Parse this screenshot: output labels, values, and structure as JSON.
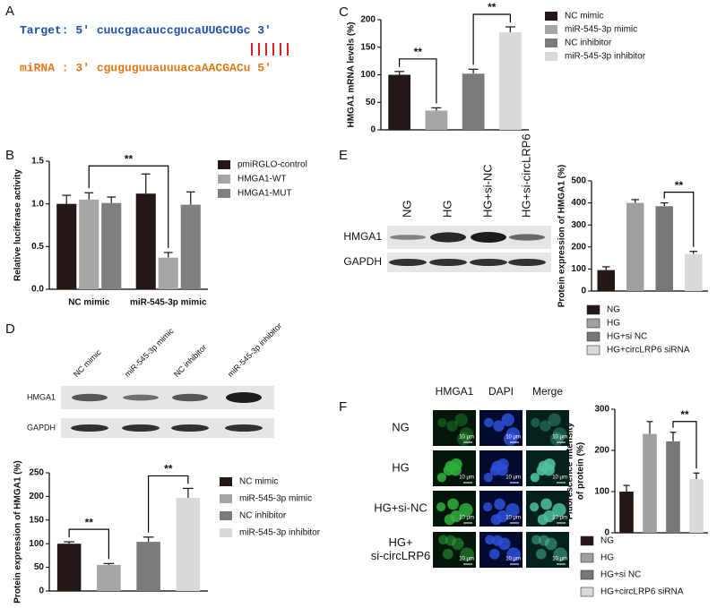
{
  "panels": [
    "A",
    "B",
    "C",
    "D",
    "E",
    "F"
  ],
  "sequence": {
    "target": "Target: 5' cuucgacauccgucaUUGCUGc 3'",
    "mirna": "miRNA : 3' cguguguuauuuacaAACGACu 5'"
  },
  "blot_d": {
    "lanes": [
      "NC mimic",
      "miR-545-3p mimic",
      "NC inhibitor",
      "miR-545-3p inhibitor"
    ],
    "rows": [
      "HMGA1",
      "GAPDH"
    ]
  },
  "blot_e": {
    "lanes": [
      "NG",
      "HG",
      "HG+si-NC",
      "HG+si-circLRP6"
    ],
    "rows": [
      "HMGA1",
      "GAPDH"
    ]
  },
  "imaging_f": {
    "columns": [
      "HMGA1",
      "DAPI",
      "Merge"
    ],
    "rows": [
      [
        "NG"
      ],
      [
        "HG"
      ],
      [
        "HG+si-NC"
      ],
      [
        "HG+",
        "si-circLRP6"
      ]
    ],
    "scale_bar": "10 μm"
  },
  "chart_data": [
    {
      "type": "bar",
      "ylabel": "Relative luciferase activity",
      "categories": [
        "NC mimic",
        "miR-545-3p mimic"
      ],
      "series": [
        {
          "name": "pmiRGLO-control",
          "color": "#231815",
          "values": [
            1.0,
            1.12
          ],
          "errors": [
            0.1,
            0.23
          ]
        },
        {
          "name": "HMGA1-WT",
          "color": "#a6a6a6",
          "values": [
            1.05,
            0.37
          ],
          "errors": [
            0.08,
            0.06
          ]
        },
        {
          "name": "HMGA1-MUT",
          "color": "#7f7f7f",
          "values": [
            1.01,
            0.99
          ],
          "errors": [
            0.07,
            0.15
          ]
        }
      ],
      "ylim": [
        0,
        1.5
      ],
      "yticks": [
        {
          "value": 0,
          "label": "0.0"
        },
        0.5,
        {
          "value": 1,
          "label": "1.0"
        },
        1.5
      ],
      "significance": [
        "**"
      ]
    },
    {
      "type": "bar",
      "ylabel": "HMGA1 mRNA levels (%)",
      "series": [
        {
          "name": "NC mimic",
          "color": "#231815",
          "values": [
            100
          ],
          "errors": [
            6
          ]
        },
        {
          "name": "miR-545-3p mimic",
          "color": "#a6a6a6",
          "values": [
            35
          ],
          "errors": [
            5
          ]
        },
        {
          "name": "NC inhibitor",
          "color": "#7b7b7b",
          "values": [
            102
          ],
          "errors": [
            8
          ]
        },
        {
          "name": "miR-545-3p inhibitor",
          "color": "#d9d9d9",
          "values": [
            177
          ],
          "errors": [
            10
          ]
        }
      ],
      "ylim": [
        0,
        200
      ],
      "yticks": [
        0,
        50,
        100,
        150,
        200
      ],
      "significance": [
        "**",
        "**"
      ]
    },
    {
      "type": "bar",
      "ylabel": "Protein expression of HMGA1 (%)",
      "series": [
        {
          "name": "NC mimic",
          "color": "#231815",
          "values": [
            100
          ],
          "errors": [
            4
          ]
        },
        {
          "name": "miR-545-3p mimic",
          "color": "#a6a6a6",
          "values": [
            55
          ],
          "errors": [
            3
          ]
        },
        {
          "name": "NC inhibitor",
          "color": "#7b7b7b",
          "values": [
            104
          ],
          "errors": [
            10
          ]
        },
        {
          "name": "miR-545-3p inhibitor",
          "color": "#d9d9d9",
          "values": [
            197
          ],
          "errors": [
            20
          ]
        }
      ],
      "ylim": [
        0,
        250
      ],
      "yticks": [
        0,
        50,
        100,
        150,
        200,
        250
      ],
      "significance": [
        "**",
        "**"
      ]
    },
    {
      "type": "bar",
      "ylabel": "Protein expression of HMGA1 (%)",
      "series": [
        {
          "name": "NG",
          "color": "#231815",
          "values": [
            95
          ],
          "errors": [
            15
          ]
        },
        {
          "name": "HG",
          "color": "#a0a0a0",
          "values": [
            400
          ],
          "errors": [
            15
          ]
        },
        {
          "name": "HG+si NC",
          "color": "#777777",
          "values": [
            385
          ],
          "errors": [
            15
          ]
        },
        {
          "name": "HG+circLRP6 siRNA",
          "color": "#d9d9d9",
          "values": [
            168
          ],
          "errors": [
            12
          ]
        }
      ],
      "ylim": [
        0,
        500
      ],
      "yticks": [
        0,
        100,
        200,
        300,
        400,
        500
      ],
      "significance": [
        "**"
      ]
    },
    {
      "type": "bar",
      "ylabel": [
        "Fluorescence intensity",
        "of protein (%)"
      ],
      "series": [
        {
          "name": "NG",
          "color": "#231815",
          "values": [
            100
          ],
          "errors": [
            15
          ]
        },
        {
          "name": "HG",
          "color": "#a0a0a0",
          "values": [
            240
          ],
          "errors": [
            30
          ]
        },
        {
          "name": "HG+si NC",
          "color": "#777777",
          "values": [
            222
          ],
          "errors": [
            22
          ]
        },
        {
          "name": "HG+circLRP6 siRNA",
          "color": "#d9d9d9",
          "values": [
            130
          ],
          "errors": [
            15
          ]
        }
      ],
      "ylim": [
        0,
        300
      ],
      "yticks": [
        0,
        100,
        200,
        300
      ],
      "significance": [
        "**"
      ]
    }
  ]
}
